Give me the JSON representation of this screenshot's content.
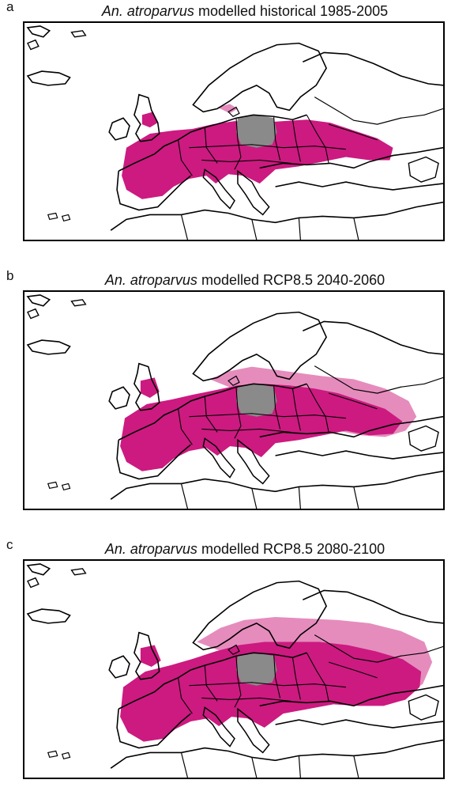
{
  "panels": [
    {
      "letter": "a",
      "title_species": "An. atroparvus",
      "title_rest": "modelled historical 1985-2005",
      "range_level": "historical"
    },
    {
      "letter": "b",
      "title_species": "An. atroparvus",
      "title_rest": "modelled RCP8.5 2040-2060",
      "range_level": "mid-century"
    },
    {
      "letter": "c",
      "title_species": "An. atroparvus",
      "title_rest": "modelled RCP8.5 2080-2100",
      "range_level": "end-of-century"
    }
  ],
  "colors": {
    "suitable_range": "#cc1a80",
    "suitable_range_fringe": "#e58cbd",
    "masked_country": "#8a8a8a",
    "coastline": "#000000",
    "background": "#ffffff"
  }
}
